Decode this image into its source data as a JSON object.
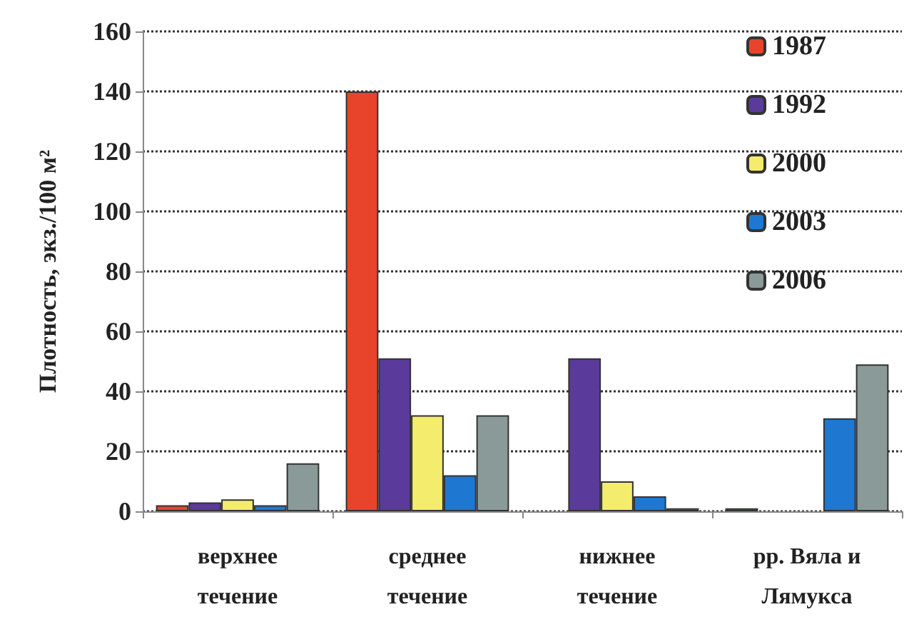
{
  "chart_data": {
    "type": "bar",
    "ylabel": "Плотность, экз./100 м²",
    "categories": [
      "верхнее\nтечение",
      "среднее\nтечение",
      "нижнее\nтечение",
      "рр. Вяла и\nЛямукса"
    ],
    "series": [
      {
        "name": "1987",
        "color": "#e8442c",
        "values": [
          2,
          140,
          null,
          1
        ]
      },
      {
        "name": "1992",
        "color": "#5a3a9a",
        "values": [
          3,
          51,
          51,
          null
        ]
      },
      {
        "name": "2000",
        "color": "#f4ec6c",
        "values": [
          4,
          32,
          10,
          null
        ]
      },
      {
        "name": "2003",
        "color": "#1e78d2",
        "values": [
          2,
          12,
          5,
          31
        ]
      },
      {
        "name": "2006",
        "color": "#8a9a98",
        "values": [
          16,
          32,
          1,
          49
        ]
      }
    ],
    "ylim": [
      0,
      160
    ],
    "yticks": [
      0,
      20,
      40,
      60,
      80,
      100,
      120,
      140,
      160
    ],
    "grid": "y",
    "legend": "top right"
  }
}
